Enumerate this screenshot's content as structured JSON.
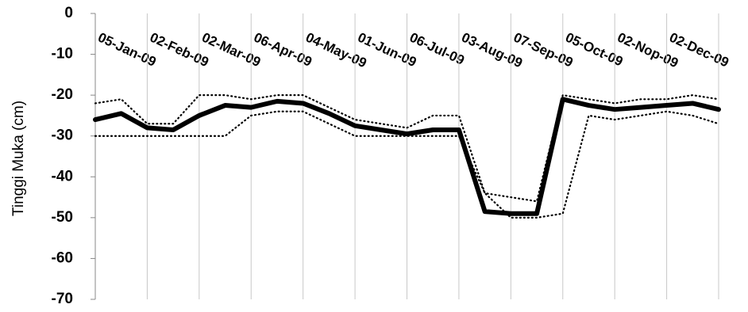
{
  "chart_data": {
    "type": "line",
    "y_label": "Tinggi Muka  (cm)",
    "categories": [
      "05-Jan-09",
      null,
      "02-Feb-09",
      null,
      "02-Mar-09",
      null,
      "06-Apr-09",
      null,
      "04-May-09",
      null,
      "01-Jun-09",
      null,
      "06-Jul-09",
      null,
      "03-Aug-09",
      null,
      "07-Sep-09",
      null,
      "05-Oct-09",
      null,
      "02-Nop-09",
      null,
      "02-Dec-09",
      null,
      null
    ],
    "series": [
      {
        "color": "#000000",
        "style": "dotted",
        "values": [
          -22,
          -21,
          -27,
          -27,
          -20,
          -20,
          -21,
          -20,
          -20,
          -23,
          -26,
          -27,
          -28,
          -25,
          -25,
          -44,
          -45,
          -46,
          -20,
          -21,
          -22,
          -21,
          -21,
          -20,
          -21
        ]
      },
      {
        "color": "#000000",
        "style": "dotted",
        "values": [
          -30,
          -30,
          -30,
          -30,
          -30,
          -30,
          -25,
          -24,
          -24,
          -27,
          -30,
          -30,
          -30,
          -30,
          -30,
          -44,
          -50,
          -50,
          -49,
          -25,
          -26,
          -25,
          -24,
          -25,
          -27
        ]
      },
      {
        "color": "#000000",
        "style": "solid",
        "values": [
          -26,
          -24.5,
          -28,
          -28.5,
          -25,
          -22.5,
          -23,
          -21.5,
          -22,
          -24.5,
          -27.5,
          -28.5,
          -29.5,
          -28.5,
          -28.5,
          -48.5,
          -49,
          -49,
          -21,
          -22.5,
          -23.5,
          -23,
          -22.5,
          -22,
          -23.5
        ]
      }
    ],
    "ylim": [
      -70,
      0
    ],
    "yticks": [
      0,
      -10,
      -20,
      -30,
      -40,
      -50,
      -60,
      -70
    ],
    "grid": true
  }
}
